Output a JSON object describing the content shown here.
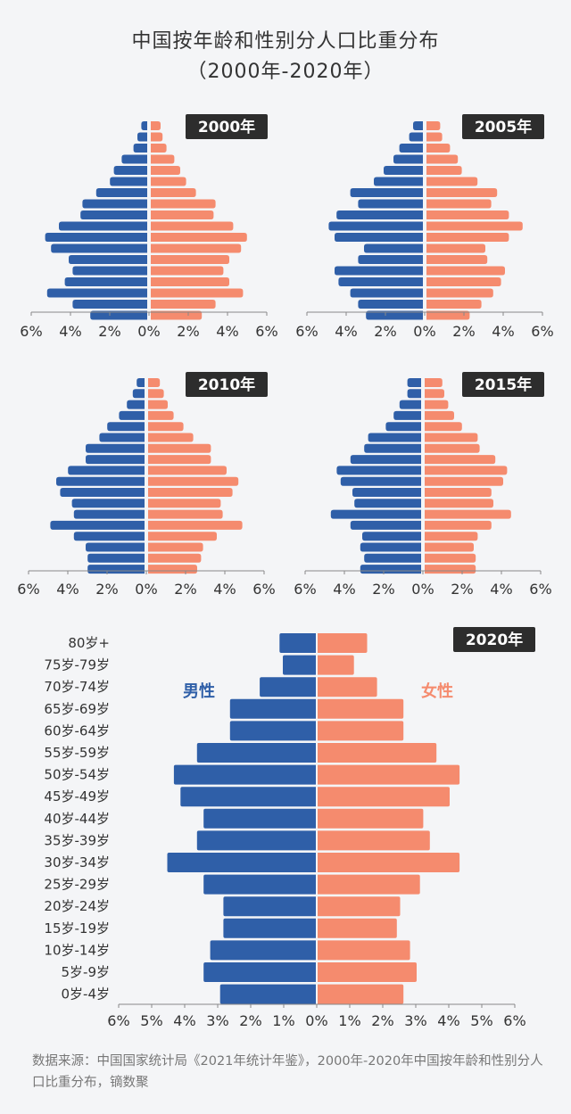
{
  "title": "中国按年龄和性别分人口比重分布",
  "subtitle": "（2000年-2020年）",
  "source": "数据来源：中国国家统计局《2021年统计年鉴》，2000年-2020年中国按年龄和性别分人口比重分布，镝数聚",
  "colors": {
    "male": "#2f5fa8",
    "female": "#f58b6e"
  },
  "chart_data": [
    {
      "type": "bar",
      "badge": "2000年",
      "xlim": [
        -6,
        6
      ],
      "x_ticks": [
        "6%",
        "4%",
        "2%",
        "0%",
        "2%",
        "4%",
        "6%"
      ],
      "series": [
        {
          "values": [
            0.3,
            0.5,
            0.7,
            1.3,
            1.7,
            1.9,
            2.6,
            3.3,
            3.4,
            4.5,
            5.2,
            4.9,
            4.0,
            3.8,
            4.2,
            5.1,
            3.8,
            2.9
          ]
        },
        {
          "values": [
            0.5,
            0.6,
            0.8,
            1.2,
            1.5,
            1.8,
            2.3,
            3.3,
            3.2,
            4.2,
            4.9,
            4.6,
            4.0,
            3.7,
            4.0,
            4.7,
            3.3,
            2.6
          ]
        }
      ]
    },
    {
      "type": "bar",
      "badge": "2005年",
      "xlim": [
        -6,
        6
      ],
      "x_ticks": [
        "6%",
        "4%",
        "2%",
        "0%",
        "2%",
        "4%",
        "6%"
      ],
      "series": [
        {
          "values": [
            0.5,
            0.7,
            1.2,
            1.5,
            2.0,
            2.5,
            3.7,
            3.3,
            4.4,
            4.8,
            4.5,
            3.0,
            3.3,
            4.5,
            4.3,
            3.7,
            3.3,
            2.9
          ]
        },
        {
          "values": [
            0.7,
            0.8,
            1.2,
            1.6,
            1.8,
            2.6,
            3.6,
            3.3,
            4.2,
            4.9,
            4.2,
            3.0,
            3.1,
            4.0,
            3.8,
            3.4,
            2.8,
            2.2
          ]
        }
      ]
    },
    {
      "type": "bar",
      "badge": "2010年",
      "xlim": [
        -6,
        6
      ],
      "x_ticks": [
        "6%",
        "4%",
        "2%",
        "0%",
        "2%",
        "4%",
        "6%"
      ],
      "series": [
        {
          "values": [
            0.4,
            0.6,
            0.9,
            1.3,
            1.9,
            2.3,
            3.0,
            3.0,
            3.9,
            4.5,
            4.3,
            3.7,
            3.6,
            4.8,
            3.6,
            3.0,
            2.9,
            2.9
          ]
        },
        {
          "values": [
            0.6,
            0.8,
            1.0,
            1.3,
            1.8,
            2.3,
            3.2,
            3.2,
            4.0,
            4.6,
            4.3,
            3.7,
            3.8,
            4.8,
            3.5,
            2.8,
            2.7,
            2.5
          ]
        }
      ]
    },
    {
      "type": "bar",
      "badge": "2015年",
      "xlim": [
        -6,
        6
      ],
      "x_ticks": [
        "6%",
        "4%",
        "2%",
        "0%",
        "2%",
        "4%",
        "6%"
      ],
      "series": [
        {
          "values": [
            0.7,
            0.7,
            1.1,
            1.4,
            1.8,
            2.7,
            2.9,
            3.6,
            4.3,
            4.1,
            3.5,
            3.4,
            4.6,
            3.6,
            3.0,
            3.1,
            2.9,
            3.1
          ]
        },
        {
          "values": [
            0.9,
            1.0,
            1.2,
            1.5,
            1.9,
            2.7,
            2.8,
            3.6,
            4.2,
            4.0,
            3.4,
            3.5,
            4.4,
            3.4,
            2.7,
            2.5,
            2.6,
            2.6
          ]
        }
      ]
    },
    {
      "type": "bar",
      "badge": "2020年",
      "xlim": [
        -6,
        6
      ],
      "x_ticks": [
        "6%",
        "5%",
        "4%",
        "3%",
        "2%",
        "1%",
        "0%",
        "1%",
        "2%",
        "3%",
        "4%",
        "5%",
        "6%"
      ],
      "categories": [
        "80岁+",
        "75岁-79岁",
        "70岁-74岁",
        "65岁-69岁",
        "60岁-64岁",
        "55岁-59岁",
        "50岁-54岁",
        "45岁-49岁",
        "40岁-44岁",
        "35岁-39岁",
        "30岁-34岁",
        "25岁-29岁",
        "20岁-24岁",
        "15岁-19岁",
        "10岁-14岁",
        "5岁-9岁",
        "0岁-4岁"
      ],
      "series": [
        {
          "name": "男性",
          "values": [
            1.1,
            1.0,
            1.7,
            2.6,
            2.6,
            3.6,
            4.3,
            4.1,
            3.4,
            3.6,
            4.5,
            3.4,
            2.8,
            2.8,
            3.2,
            3.4,
            2.9
          ]
        },
        {
          "name": "女性",
          "values": [
            1.5,
            1.1,
            1.8,
            2.6,
            2.6,
            3.6,
            4.3,
            4.0,
            3.2,
            3.4,
            4.3,
            3.1,
            2.5,
            2.4,
            2.8,
            3.0,
            2.6
          ]
        }
      ]
    }
  ]
}
